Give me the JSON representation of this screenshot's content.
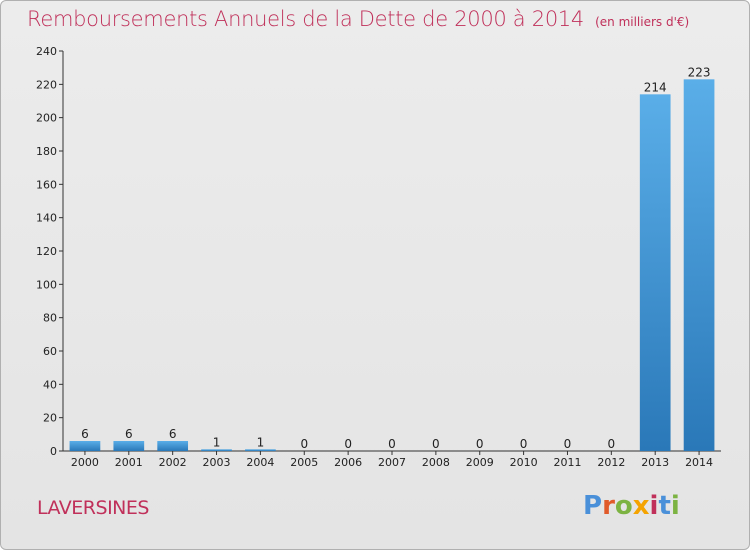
{
  "header": {
    "title": "Remboursements Annuels de la Dette de 2000 à 2014",
    "subtitle": "(en milliers d'€)"
  },
  "location": "LAVERSINES",
  "logo": {
    "text": "Proxiti",
    "letters": [
      "P",
      "r",
      "o",
      "x",
      "i",
      "t",
      "i"
    ],
    "colors": [
      "#4a90d9",
      "#e05a2a",
      "#7cb342",
      "#f4a300",
      "#c0305a",
      "#4a90d9",
      "#7cb342"
    ]
  },
  "colors": {
    "bar_light": "#5aaee8",
    "bar_dark": "#2a78b8",
    "title": "#c0305a",
    "axis": "#333333"
  },
  "chart_data": {
    "type": "bar",
    "title": "Remboursements Annuels de la Dette de 2000 à 2014",
    "subtitle": "(en milliers d'€)",
    "categories": [
      "2000",
      "2001",
      "2002",
      "2003",
      "2004",
      "2005",
      "2006",
      "2007",
      "2008",
      "2009",
      "2010",
      "2011",
      "2012",
      "2013",
      "2014"
    ],
    "values": [
      6,
      6,
      6,
      1,
      1,
      0,
      0,
      0,
      0,
      0,
      0,
      0,
      0,
      214,
      223
    ],
    "ylim": [
      0,
      240
    ],
    "yticks": [
      0,
      20,
      40,
      60,
      80,
      100,
      120,
      140,
      160,
      180,
      200,
      220,
      240
    ],
    "grid": false,
    "legend": "none"
  }
}
